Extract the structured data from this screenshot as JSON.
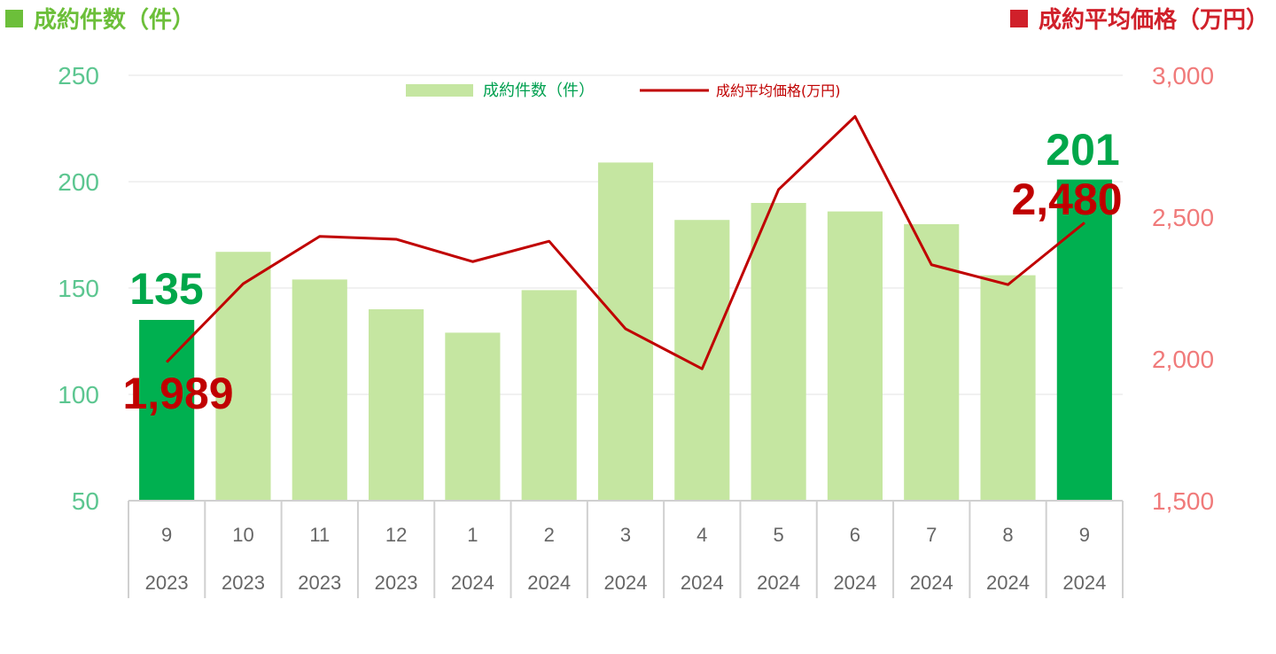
{
  "header": {
    "left_title": "成約件数（件）",
    "right_title": "成約平均価格（万円）"
  },
  "colors": {
    "bar_default": "#c5e6a1",
    "bar_highlight": "#00b050",
    "line": "#c00000",
    "left_axis": "#5cc690",
    "right_axis": "#f07a7a"
  },
  "chart_data": {
    "type": "bar+line",
    "categories": [
      {
        "month": "9",
        "year": "2023"
      },
      {
        "month": "10",
        "year": "2023"
      },
      {
        "month": "11",
        "year": "2023"
      },
      {
        "month": "12",
        "year": "2023"
      },
      {
        "month": "1",
        "year": "2024"
      },
      {
        "month": "2",
        "year": "2024"
      },
      {
        "month": "3",
        "year": "2024"
      },
      {
        "month": "4",
        "year": "2024"
      },
      {
        "month": "5",
        "year": "2024"
      },
      {
        "month": "6",
        "year": "2024"
      },
      {
        "month": "7",
        "year": "2024"
      },
      {
        "month": "8",
        "year": "2024"
      },
      {
        "month": "9",
        "year": "2024"
      }
    ],
    "series": [
      {
        "name": "成約件数（件）",
        "type": "bar",
        "axis": "left",
        "values": [
          135,
          167,
          154,
          140,
          129,
          149,
          209,
          182,
          190,
          186,
          180,
          156,
          201
        ],
        "highlight_indices": [
          0,
          12
        ]
      },
      {
        "name": "成約平均価格(万円)",
        "type": "line",
        "axis": "right",
        "values": [
          1989,
          2265,
          2432,
          2422,
          2343,
          2415,
          2106,
          1965,
          2597,
          2855,
          2332,
          2262,
          2480
        ]
      }
    ],
    "left_axis": {
      "min": 50,
      "max": 250,
      "ticks": [
        "50",
        "100",
        "150",
        "200",
        "250"
      ]
    },
    "right_axis": {
      "min": 1500,
      "max": 3000,
      "ticks": [
        "1,500",
        "2,000",
        "2,500",
        "3,000"
      ]
    },
    "grid": true,
    "legend_position": "top-center",
    "data_labels": [
      {
        "series": 0,
        "index": 0,
        "text": "135"
      },
      {
        "series": 0,
        "index": 12,
        "text": "201"
      },
      {
        "series": 1,
        "index": 0,
        "text": "1,989"
      },
      {
        "series": 1,
        "index": 12,
        "text": "2,480"
      }
    ]
  }
}
